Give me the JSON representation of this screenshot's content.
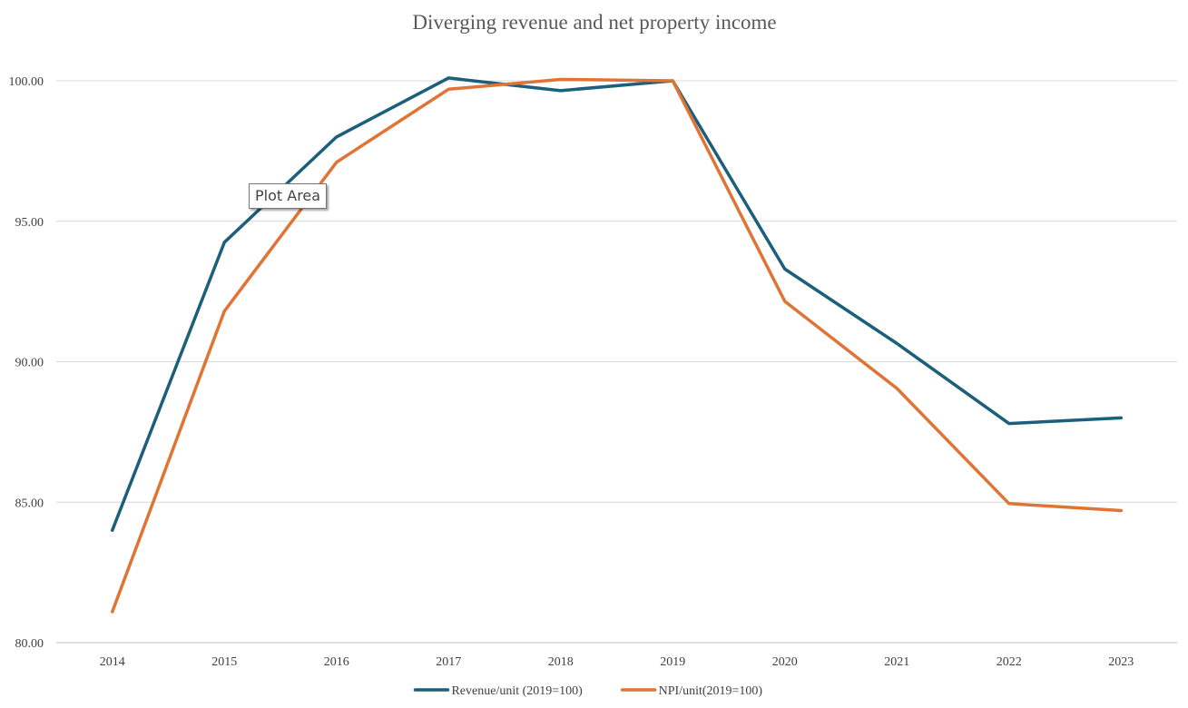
{
  "chart_data": {
    "type": "line",
    "title": "Diverging revenue and net property income",
    "xlabel": "",
    "ylabel": "",
    "categories": [
      "2014",
      "2015",
      "2016",
      "2017",
      "2018",
      "2019",
      "2020",
      "2021",
      "2022",
      "2023"
    ],
    "series": [
      {
        "name": "Revenue/unit (2019=100)",
        "color": "#1b5f7a",
        "values": [
          84.0,
          94.25,
          98.0,
          100.1,
          99.65,
          100.0,
          93.3,
          90.65,
          87.8,
          88.0
        ]
      },
      {
        "name": "NPI/unit(2019=100)",
        "color": "#e07435",
        "values": [
          81.1,
          91.8,
          97.1,
          99.7,
          100.05,
          100.0,
          92.15,
          89.05,
          84.95,
          84.7
        ]
      }
    ],
    "ylim": [
      80,
      100
    ],
    "yticks": [
      "80.00",
      "85.00",
      "90.00",
      "95.00",
      "100.00"
    ],
    "grid": true,
    "legend_position": "bottom"
  },
  "tooltip": {
    "text": "Plot Area"
  }
}
